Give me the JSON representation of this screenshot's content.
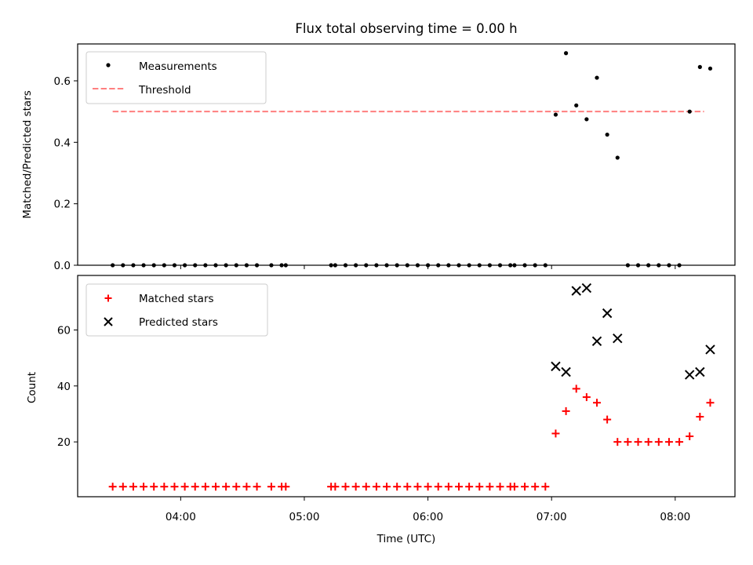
{
  "title": "Flux total observing time = 0.00 h",
  "xlabel": "Time (UTC)",
  "x_ticks": [
    "04:00",
    "05:00",
    "06:00",
    "07:00",
    "08:00"
  ],
  "colors": {
    "measurement": "#000000",
    "threshold": "#ff7f7f",
    "matched": "#ff0000",
    "predicted": "#000000"
  },
  "chart_data": [
    {
      "type": "scatter",
      "ylabel": "Matched/Predicted stars",
      "x_ticks": [
        "04:00",
        "05:00",
        "06:00",
        "07:00",
        "08:00"
      ],
      "y_ticks": [
        "0.0",
        "0.2",
        "0.4",
        "0.6"
      ],
      "ylim": [
        0.0,
        0.72
      ],
      "legend": {
        "placement": "upper-left",
        "entries": [
          "Measurements",
          "Threshold"
        ]
      },
      "grid": false,
      "threshold": {
        "name": "Threshold",
        "value": 0.5,
        "x_start": "03:27",
        "x_end": "08:14"
      },
      "series": [
        {
          "name": "Measurements",
          "marker": "dot",
          "x": [
            "03:27",
            "03:32",
            "03:37",
            "03:42",
            "03:47",
            "03:52",
            "03:57",
            "04:02",
            "04:07",
            "04:12",
            "04:17",
            "04:22",
            "04:27",
            "04:32",
            "04:37",
            "04:44",
            "04:49",
            "04:51",
            "05:13",
            "05:15",
            "05:20",
            "05:25",
            "05:30",
            "05:35",
            "05:40",
            "05:45",
            "05:50",
            "05:55",
            "06:00",
            "06:05",
            "06:10",
            "06:15",
            "06:20",
            "06:25",
            "06:30",
            "06:35",
            "06:40",
            "06:42",
            "06:47",
            "06:52",
            "06:57",
            "07:02",
            "07:07",
            "07:12",
            "07:17",
            "07:22",
            "07:27",
            "07:32",
            "07:37",
            "07:42",
            "07:47",
            "07:52",
            "07:57",
            "08:02",
            "08:07",
            "08:12",
            "08:17"
          ],
          "y": [
            0,
            0,
            0,
            0,
            0,
            0,
            0,
            0,
            0,
            0,
            0,
            0,
            0,
            0,
            0,
            0,
            0,
            0,
            0,
            0,
            0,
            0,
            0,
            0,
            0,
            0,
            0,
            0,
            0,
            0,
            0,
            0,
            0,
            0,
            0,
            0,
            0,
            0,
            0,
            0,
            0,
            0.49,
            0.69,
            0.52,
            0.475,
            0.61,
            0.425,
            0.35,
            0,
            0,
            0,
            0,
            0,
            0,
            0.5,
            0.645,
            0.64
          ]
        }
      ]
    },
    {
      "type": "scatter",
      "ylabel": "Count",
      "xlabel": "Time (UTC)",
      "x_ticks": [
        "04:00",
        "05:00",
        "06:00",
        "07:00",
        "08:00"
      ],
      "y_ticks": [
        "20",
        "40",
        "60"
      ],
      "ylim": [
        0.4,
        79.5
      ],
      "legend": {
        "placement": "upper-left",
        "entries": [
          "Matched stars",
          "Predicted stars"
        ]
      },
      "grid": false,
      "series": [
        {
          "name": "Matched stars",
          "marker": "plus",
          "x": [
            "03:27",
            "03:32",
            "03:37",
            "03:42",
            "03:47",
            "03:52",
            "03:57",
            "04:02",
            "04:07",
            "04:12",
            "04:17",
            "04:22",
            "04:27",
            "04:32",
            "04:37",
            "04:44",
            "04:49",
            "04:51",
            "05:13",
            "05:15",
            "05:20",
            "05:25",
            "05:30",
            "05:35",
            "05:40",
            "05:45",
            "05:50",
            "05:55",
            "06:00",
            "06:05",
            "06:10",
            "06:15",
            "06:20",
            "06:25",
            "06:30",
            "06:35",
            "06:40",
            "06:42",
            "06:47",
            "06:52",
            "06:57",
            "07:02",
            "07:07",
            "07:12",
            "07:17",
            "07:22",
            "07:27",
            "07:32",
            "07:37",
            "07:42",
            "07:47",
            "07:52",
            "07:57",
            "08:02",
            "08:07",
            "08:12",
            "08:17"
          ],
          "y": [
            4,
            4,
            4,
            4,
            4,
            4,
            4,
            4,
            4,
            4,
            4,
            4,
            4,
            4,
            4,
            4,
            4,
            4,
            4,
            4,
            4,
            4,
            4,
            4,
            4,
            4,
            4,
            4,
            4,
            4,
            4,
            4,
            4,
            4,
            4,
            4,
            4,
            4,
            4,
            4,
            4,
            23,
            31,
            39,
            36,
            34,
            28,
            20,
            20,
            20,
            20,
            20,
            20,
            20,
            22,
            29,
            34
          ]
        },
        {
          "name": "Predicted stars",
          "marker": "x",
          "x": [
            "07:02",
            "07:07",
            "07:12",
            "07:17",
            "07:22",
            "07:27",
            "07:32",
            "08:07",
            "08:12",
            "08:17"
          ],
          "y": [
            47,
            45,
            74,
            75,
            56,
            66,
            57,
            44,
            45,
            53
          ]
        }
      ]
    }
  ]
}
